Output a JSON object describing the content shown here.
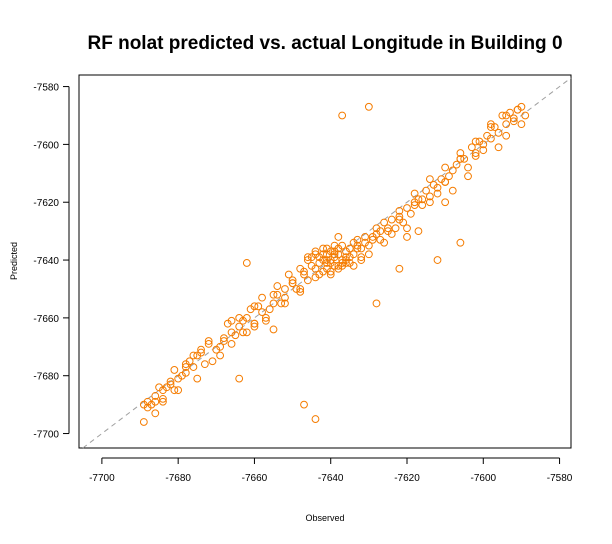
{
  "chart_data": {
    "type": "scatter",
    "title": "RF nolat predicted vs. actual Longitude in Building 0",
    "xlabel": "Observed",
    "ylabel": "Predicted",
    "xlim": [
      -7706,
      -7577
    ],
    "ylim": [
      -7705,
      -7576
    ],
    "xticks": [
      -7700,
      -7680,
      -7660,
      -7640,
      -7620,
      -7600,
      -7580
    ],
    "yticks": [
      -7700,
      -7680,
      -7660,
      -7640,
      -7620,
      -7600,
      -7580
    ],
    "xtick_labels": [
      "-7700",
      "-7680",
      "-7660",
      "-7640",
      "-7620",
      "-7600",
      "-7580"
    ],
    "ytick_labels": [
      "-7700",
      "-7680",
      "-7660",
      "-7640",
      "-7620",
      "-7600",
      "-7580"
    ],
    "reference_line": "y = x (dashed gray)",
    "marker": "open circle",
    "point_color": "#f57c00",
    "line_color": "#a0a0a0",
    "grid": false,
    "legend": "none",
    "series": [
      {
        "x": [
          -7689,
          -7688,
          -7687,
          -7686,
          -7685,
          -7684,
          -7683,
          -7682,
          -7681,
          -7680,
          -7679,
          -7678,
          -7677,
          -7676,
          -7675,
          -7674,
          -7673,
          -7672,
          -7670,
          -7669,
          -7668,
          -7667,
          -7666,
          -7665,
          -7664,
          -7663,
          -7662,
          -7661,
          -7660,
          -7659,
          -7658,
          -7657,
          -7656,
          -7655,
          -7654,
          -7653,
          -7652,
          -7651,
          -7650,
          -7649,
          -7648,
          -7647,
          -7646,
          -7645,
          -7644,
          -7643,
          -7642,
          -7641,
          -7640,
          -7639,
          -7638,
          -7637,
          -7636,
          -7635,
          -7634,
          -7633,
          -7632,
          -7631,
          -7630,
          -7629,
          -7628,
          -7627,
          -7626,
          -7625,
          -7624,
          -7623,
          -7622,
          -7621,
          -7620,
          -7619,
          -7618,
          -7617,
          -7616,
          -7615,
          -7614,
          -7613,
          -7612,
          -7611,
          -7610,
          -7609,
          -7608,
          -7607,
          -7606,
          -7605,
          -7604,
          -7603,
          -7602,
          -7601,
          -7600,
          -7599,
          -7598,
          -7597,
          -7596,
          -7595,
          -7594,
          -7593,
          -7592,
          -7591,
          -7590,
          -7589,
          -7688,
          -7686,
          -7684,
          -7682,
          -7680,
          -7678,
          -7676,
          -7674,
          -7671,
          -7668,
          -7666,
          -7664,
          -7662,
          -7660,
          -7658,
          -7655,
          -7652,
          -7650,
          -7648,
          -7646,
          -7644,
          -7642,
          -7641,
          -7640,
          -7639,
          -7638,
          -7637,
          -7636,
          -7635,
          -7634,
          -7633,
          -7632,
          -7630,
          -7628,
          -7626,
          -7624,
          -7622,
          -7620,
          -7618,
          -7616,
          -7614,
          -7612,
          -7610,
          -7608,
          -7606,
          -7604,
          -7602,
          -7600,
          -7598,
          -7596,
          -7594,
          -7592,
          -7590,
          -7641,
          -7640,
          -7639,
          -7638,
          -7642,
          -7643,
          -7637,
          -7636,
          -7644,
          -7641,
          -7639,
          -7640,
          -7638,
          -7642,
          -7637,
          -7645,
          -7635,
          -7643,
          -7646,
          -7634,
          -7640,
          -7641,
          -7639,
          -7636,
          -7644,
          -7633,
          -7647,
          -7632,
          -7648,
          -7631,
          -7638,
          -7650,
          -7629,
          -7652,
          -7627,
          -7654,
          -7625,
          -7657,
          -7622,
          -7660,
          -7618,
          -7663,
          -7614,
          -7666,
          -7610,
          -7669,
          -7606,
          -7672,
          -7602,
          -7675,
          -7598,
          -7678,
          -7594,
          -7681,
          -7591,
          -7684,
          -7686,
          -7689,
          -7612,
          -7637,
          -7662,
          -7664,
          -7660,
          -7606,
          -7617,
          -7622,
          -7630,
          -7628,
          -7647,
          -7644,
          -7620,
          -7610,
          -7655
        ],
        "y": [
          -7690,
          -7689,
          -7690,
          -7689,
          -7684,
          -7688,
          -7684,
          -7682,
          -7678,
          -7685,
          -7680,
          -7676,
          -7675,
          -7677,
          -7673,
          -7672,
          -7676,
          -7669,
          -7671,
          -7673,
          -7667,
          -7662,
          -7665,
          -7666,
          -7663,
          -7661,
          -7660,
          -7657,
          -7662,
          -7656,
          -7653,
          -7660,
          -7657,
          -7652,
          -7649,
          -7655,
          -7650,
          -7645,
          -7648,
          -7650,
          -7643,
          -7645,
          -7639,
          -7642,
          -7638,
          -7639,
          -7636,
          -7641,
          -7640,
          -7637,
          -7638,
          -7635,
          -7640,
          -7639,
          -7634,
          -7633,
          -7636,
          -7632,
          -7635,
          -7632,
          -7629,
          -7633,
          -7627,
          -7630,
          -7626,
          -7629,
          -7625,
          -7627,
          -7622,
          -7624,
          -7621,
          -7619,
          -7621,
          -7616,
          -7618,
          -7614,
          -7615,
          -7612,
          -7613,
          -7611,
          -7609,
          -7607,
          -7605,
          -7605,
          -7608,
          -7601,
          -7603,
          -7599,
          -7600,
          -7597,
          -7594,
          -7594,
          -7596,
          -7590,
          -7593,
          -7589,
          -7591,
          -7588,
          -7587,
          -7590,
          -7691,
          -7687,
          -7685,
          -7683,
          -7681,
          -7679,
          -7673,
          -7671,
          -7675,
          -7668,
          -7669,
          -7660,
          -7665,
          -7663,
          -7658,
          -7655,
          -7653,
          -7647,
          -7651,
          -7647,
          -7643,
          -7644,
          -7638,
          -7645,
          -7642,
          -7643,
          -7641,
          -7637,
          -7636,
          -7642,
          -7635,
          -7640,
          -7638,
          -7631,
          -7634,
          -7631,
          -7626,
          -7629,
          -7617,
          -7619,
          -7620,
          -7617,
          -7613,
          -7616,
          -7603,
          -7611,
          -7604,
          -7602,
          -7598,
          -7601,
          -7597,
          -7592,
          -7593,
          -7640,
          -7641,
          -7639,
          -7642,
          -7638,
          -7641,
          -7640,
          -7639,
          -7637,
          -7643,
          -7638,
          -7644,
          -7636,
          -7640,
          -7642,
          -7639,
          -7641,
          -7645,
          -7640,
          -7638,
          -7637,
          -7636,
          -7635,
          -7641,
          -7646,
          -7636,
          -7644,
          -7639,
          -7650,
          -7634,
          -7632,
          -7648,
          -7633,
          -7655,
          -7630,
          -7652,
          -7629,
          -7661,
          -7623,
          -7656,
          -7620,
          -7665,
          -7612,
          -7661,
          -7608,
          -7670,
          -7605,
          -7668,
          -7599,
          -7681,
          -7593,
          -7677,
          -7590,
          -7685,
          -7588,
          -7689,
          -7693,
          -7696,
          -7640,
          -7590,
          -7641,
          -7681,
          -7662,
          -7634,
          -7630,
          -7643,
          -7587,
          -7655,
          -7690,
          -7695,
          -7632,
          -7620,
          -7664
        ]
      }
    ]
  }
}
